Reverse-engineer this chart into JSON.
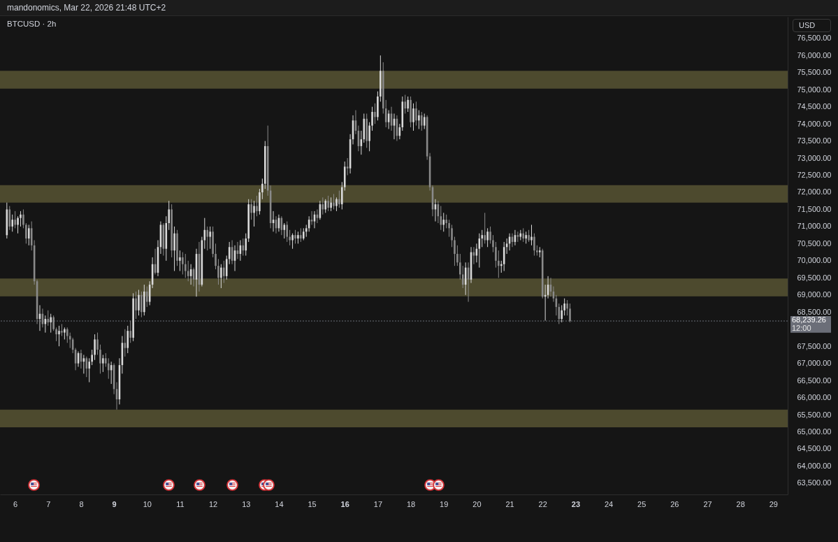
{
  "chart_data": {
    "type": "candlestick",
    "title": "BTCUSD · 2h",
    "annotations": [
      "mandonomics, Mar 22, 2026 21:48 UTC+2",
      "USD",
      "12:00"
    ],
    "x": [
      "2026-03-05T18:00",
      "2026-03-05T20:00",
      "2026-03-05T22:00",
      "2026-03-06T00:00",
      "2026-03-06T02:00",
      "2026-03-06T04:00",
      "2026-03-06T06:00",
      "2026-03-06T08:00",
      "2026-03-06T10:00",
      "2026-03-06T12:00",
      "2026-03-06T14:00",
      "2026-03-06T16:00",
      "2026-03-06T18:00",
      "2026-03-06T20:00",
      "2026-03-06T22:00",
      "2026-03-07T00:00",
      "2026-03-07T02:00",
      "2026-03-07T04:00",
      "2026-03-07T06:00",
      "2026-03-07T08:00",
      "2026-03-07T10:00",
      "2026-03-07T12:00",
      "2026-03-07T14:00",
      "2026-03-07T16:00",
      "2026-03-07T18:00",
      "2026-03-07T20:00",
      "2026-03-07T22:00",
      "2026-03-08T00:00",
      "2026-03-08T02:00",
      "2026-03-08T04:00",
      "2026-03-08T06:00",
      "2026-03-08T08:00",
      "2026-03-08T10:00",
      "2026-03-08T12:00",
      "2026-03-08T14:00",
      "2026-03-08T16:00",
      "2026-03-08T18:00",
      "2026-03-08T20:00",
      "2026-03-08T22:00",
      "2026-03-09T00:00",
      "2026-03-09T02:00",
      "2026-03-09T04:00",
      "2026-03-09T06:00",
      "2026-03-09T08:00",
      "2026-03-09T10:00",
      "2026-03-09T12:00",
      "2026-03-09T14:00",
      "2026-03-09T16:00",
      "2026-03-09T18:00",
      "2026-03-09T20:00",
      "2026-03-09T22:00",
      "2026-03-10T00:00",
      "2026-03-10T02:00",
      "2026-03-10T04:00",
      "2026-03-10T06:00",
      "2026-03-10T08:00",
      "2026-03-10T10:00",
      "2026-03-10T12:00",
      "2026-03-10T14:00",
      "2026-03-10T16:00",
      "2026-03-10T18:00",
      "2026-03-10T20:00",
      "2026-03-10T22:00",
      "2026-03-11T00:00",
      "2026-03-11T02:00",
      "2026-03-11T04:00",
      "2026-03-11T06:00",
      "2026-03-11T08:00",
      "2026-03-11T10:00",
      "2026-03-11T12:00",
      "2026-03-11T14:00",
      "2026-03-11T16:00",
      "2026-03-11T18:00",
      "2026-03-11T20:00",
      "2026-03-11T22:00",
      "2026-03-12T00:00",
      "2026-03-12T02:00",
      "2026-03-12T04:00",
      "2026-03-12T06:00",
      "2026-03-12T08:00",
      "2026-03-12T10:00",
      "2026-03-12T12:00",
      "2026-03-12T14:00",
      "2026-03-12T16:00",
      "2026-03-12T18:00",
      "2026-03-12T20:00",
      "2026-03-12T22:00",
      "2026-03-13T00:00",
      "2026-03-13T02:00",
      "2026-03-13T04:00",
      "2026-03-13T06:00",
      "2026-03-13T08:00",
      "2026-03-13T10:00",
      "2026-03-13T12:00",
      "2026-03-13T14:00",
      "2026-03-13T16:00",
      "2026-03-13T18:00",
      "2026-03-13T20:00",
      "2026-03-13T22:00",
      "2026-03-14T00:00",
      "2026-03-14T02:00",
      "2026-03-14T04:00",
      "2026-03-14T06:00",
      "2026-03-14T08:00",
      "2026-03-14T10:00",
      "2026-03-14T12:00",
      "2026-03-14T14:00",
      "2026-03-14T16:00",
      "2026-03-14T18:00",
      "2026-03-14T20:00",
      "2026-03-14T22:00",
      "2026-03-15T00:00",
      "2026-03-15T02:00",
      "2026-03-15T04:00",
      "2026-03-15T06:00",
      "2026-03-15T08:00",
      "2026-03-15T10:00",
      "2026-03-15T12:00",
      "2026-03-15T14:00",
      "2026-03-15T16:00",
      "2026-03-15T18:00",
      "2026-03-15T20:00",
      "2026-03-15T22:00",
      "2026-03-16T00:00",
      "2026-03-16T02:00",
      "2026-03-16T04:00",
      "2026-03-16T06:00",
      "2026-03-16T08:00",
      "2026-03-16T10:00",
      "2026-03-16T12:00",
      "2026-03-16T14:00",
      "2026-03-16T16:00",
      "2026-03-16T18:00",
      "2026-03-16T20:00",
      "2026-03-16T22:00",
      "2026-03-17T00:00",
      "2026-03-17T02:00",
      "2026-03-17T04:00",
      "2026-03-17T06:00",
      "2026-03-17T08:00",
      "2026-03-17T10:00",
      "2026-03-17T12:00",
      "2026-03-17T14:00",
      "2026-03-17T16:00",
      "2026-03-17T18:00",
      "2026-03-17T20:00",
      "2026-03-17T22:00",
      "2026-03-18T00:00",
      "2026-03-18T02:00",
      "2026-03-18T04:00",
      "2026-03-18T06:00",
      "2026-03-18T08:00",
      "2026-03-18T10:00",
      "2026-03-18T12:00",
      "2026-03-18T14:00",
      "2026-03-18T16:00",
      "2026-03-18T18:00",
      "2026-03-18T20:00",
      "2026-03-18T22:00",
      "2026-03-19T00:00",
      "2026-03-19T02:00",
      "2026-03-19T04:00",
      "2026-03-19T06:00",
      "2026-03-19T08:00",
      "2026-03-19T10:00",
      "2026-03-19T12:00",
      "2026-03-19T14:00",
      "2026-03-19T16:00",
      "2026-03-19T18:00",
      "2026-03-19T20:00",
      "2026-03-19T22:00",
      "2026-03-20T00:00",
      "2026-03-20T02:00",
      "2026-03-20T04:00",
      "2026-03-20T06:00",
      "2026-03-20T08:00",
      "2026-03-20T10:00",
      "2026-03-20T12:00",
      "2026-03-20T14:00",
      "2026-03-20T16:00",
      "2026-03-20T18:00",
      "2026-03-20T20:00",
      "2026-03-20T22:00",
      "2026-03-21T00:00",
      "2026-03-21T02:00",
      "2026-03-21T04:00",
      "2026-03-21T06:00",
      "2026-03-21T08:00",
      "2026-03-21T10:00",
      "2026-03-21T12:00",
      "2026-03-21T14:00",
      "2026-03-21T16:00",
      "2026-03-21T18:00",
      "2026-03-21T20:00",
      "2026-03-21T22:00",
      "2026-03-22T00:00",
      "2026-03-22T02:00",
      "2026-03-22T04:00",
      "2026-03-22T06:00",
      "2026-03-22T08:00",
      "2026-03-22T10:00",
      "2026-03-22T12:00",
      "2026-03-22T14:00",
      "2026-03-22T16:00",
      "2026-03-22T18:00",
      "2026-03-22T20:00"
    ],
    "ohlc": [
      [
        70750,
        71700,
        70650,
        71500
      ],
      [
        71500,
        71600,
        70900,
        71000
      ],
      [
        71000,
        71350,
        70850,
        71200
      ],
      [
        71200,
        71450,
        70950,
        71050
      ],
      [
        71050,
        71300,
        70800,
        71250
      ],
      [
        71250,
        71450,
        71000,
        71350
      ],
      [
        71350,
        71500,
        70950,
        71050
      ],
      [
        71050,
        71100,
        70500,
        70650
      ],
      [
        70650,
        71050,
        70450,
        70950
      ],
      [
        70950,
        71150,
        70300,
        70450
      ],
      [
        70450,
        70600,
        69300,
        69400
      ],
      [
        69400,
        69450,
        68150,
        68300
      ],
      [
        68300,
        68700,
        67950,
        68450
      ],
      [
        68450,
        68600,
        68050,
        68150
      ],
      [
        68150,
        68400,
        67900,
        68300
      ],
      [
        68300,
        68550,
        68100,
        68200
      ],
      [
        68200,
        68450,
        67900,
        68350
      ],
      [
        68350,
        68400,
        67950,
        68000
      ],
      [
        68000,
        68050,
        67650,
        67850
      ],
      [
        67850,
        68100,
        67500,
        67950
      ],
      [
        67950,
        68150,
        67800,
        67900
      ],
      [
        67900,
        68050,
        67700,
        68000
      ],
      [
        68000,
        68050,
        67600,
        67800
      ],
      [
        67800,
        67900,
        67450,
        67700
      ],
      [
        67700,
        67750,
        67300,
        67400
      ],
      [
        67400,
        67450,
        66800,
        67000
      ],
      [
        67000,
        67350,
        66900,
        67300
      ],
      [
        67300,
        67400,
        66850,
        67050
      ],
      [
        67050,
        67250,
        66700,
        67150
      ],
      [
        67150,
        67200,
        66600,
        66850
      ],
      [
        66850,
        67150,
        66450,
        67050
      ],
      [
        67050,
        67400,
        66950,
        67250
      ],
      [
        67250,
        67850,
        67100,
        67700
      ],
      [
        67700,
        67900,
        67250,
        67400
      ],
      [
        67400,
        67550,
        66700,
        67000
      ],
      [
        67000,
        67250,
        66750,
        67150
      ],
      [
        67150,
        67300,
        66900,
        67000
      ],
      [
        67000,
        67150,
        66550,
        66800
      ],
      [
        66800,
        67050,
        66400,
        66950
      ],
      [
        66950,
        67000,
        66100,
        66250
      ],
      [
        66250,
        66450,
        65650,
        65950
      ],
      [
        65950,
        67150,
        65800,
        66950
      ],
      [
        66950,
        67800,
        66700,
        67600
      ],
      [
        67600,
        68000,
        67200,
        67450
      ],
      [
        67450,
        68100,
        67300,
        67950
      ],
      [
        67950,
        68250,
        67600,
        67750
      ],
      [
        67750,
        69050,
        67650,
        68900
      ],
      [
        68900,
        69100,
        68300,
        68550
      ],
      [
        68550,
        69150,
        68400,
        69000
      ],
      [
        69000,
        69100,
        68350,
        68500
      ],
      [
        68500,
        69300,
        68400,
        69100
      ],
      [
        69100,
        69250,
        68650,
        68800
      ],
      [
        68800,
        69400,
        68700,
        69300
      ],
      [
        69300,
        70100,
        69200,
        69900
      ],
      [
        69900,
        70350,
        69600,
        69650
      ],
      [
        69650,
        70600,
        69550,
        70400
      ],
      [
        70400,
        71150,
        70200,
        71050
      ],
      [
        71050,
        71100,
        70150,
        70350
      ],
      [
        70350,
        71300,
        70000,
        71100
      ],
      [
        71100,
        71750,
        70900,
        71500
      ],
      [
        71500,
        71650,
        70100,
        70300
      ],
      [
        70300,
        71000,
        69700,
        70800
      ],
      [
        70800,
        70900,
        69850,
        70000
      ],
      [
        70000,
        70300,
        69700,
        70100
      ],
      [
        70100,
        70250,
        69600,
        69900
      ],
      [
        69900,
        70200,
        69500,
        69700
      ],
      [
        69700,
        70000,
        69400,
        69550
      ],
      [
        69550,
        69900,
        69300,
        69750
      ],
      [
        69750,
        69800,
        69250,
        69450
      ],
      [
        69450,
        70350,
        68950,
        70200
      ],
      [
        70200,
        70550,
        69100,
        69300
      ],
      [
        69300,
        70700,
        69250,
        70600
      ],
      [
        70600,
        71250,
        70350,
        70900
      ],
      [
        70900,
        71000,
        70300,
        70700
      ],
      [
        70700,
        71000,
        70350,
        70850
      ],
      [
        70850,
        71000,
        70100,
        70200
      ],
      [
        70200,
        70500,
        69750,
        69850
      ],
      [
        69850,
        70050,
        69300,
        69500
      ],
      [
        69500,
        69900,
        69200,
        69800
      ],
      [
        69800,
        70000,
        69350,
        69550
      ],
      [
        69550,
        70150,
        69450,
        70050
      ],
      [
        70050,
        70550,
        69900,
        70400
      ],
      [
        70400,
        70600,
        69900,
        70000
      ],
      [
        70000,
        70450,
        69700,
        70300
      ],
      [
        70300,
        70550,
        70050,
        70200
      ],
      [
        70200,
        70600,
        70000,
        70450
      ],
      [
        70450,
        70650,
        70150,
        70300
      ],
      [
        70300,
        70800,
        70150,
        70650
      ],
      [
        70650,
        71800,
        70550,
        71650
      ],
      [
        71650,
        71800,
        71200,
        71400
      ],
      [
        71400,
        71750,
        71000,
        71600
      ],
      [
        71600,
        71900,
        71300,
        71450
      ],
      [
        71450,
        72100,
        71350,
        72000
      ],
      [
        72000,
        72400,
        71800,
        72250
      ],
      [
        72250,
        73500,
        72100,
        73350
      ],
      [
        73350,
        73950,
        71900,
        72050
      ],
      [
        72050,
        72200,
        70950,
        71100
      ],
      [
        71100,
        71450,
        70850,
        71200
      ],
      [
        71200,
        71300,
        70800,
        70950
      ],
      [
        70950,
        71350,
        70850,
        71250
      ],
      [
        71250,
        71300,
        70750,
        70900
      ],
      [
        70900,
        71100,
        70650,
        71050
      ],
      [
        71050,
        71150,
        70550,
        70700
      ],
      [
        70700,
        70900,
        70450,
        70600
      ],
      [
        70600,
        70800,
        70350,
        70750
      ],
      [
        70750,
        70900,
        70500,
        70650
      ],
      [
        70650,
        70850,
        70500,
        70750
      ],
      [
        70750,
        70950,
        70550,
        70650
      ],
      [
        70650,
        70950,
        70600,
        70850
      ],
      [
        70850,
        71050,
        70700,
        70950
      ],
      [
        70950,
        71300,
        70850,
        71200
      ],
      [
        71200,
        71450,
        71050,
        71150
      ],
      [
        71150,
        71450,
        70950,
        71350
      ],
      [
        71350,
        71500,
        71100,
        71250
      ],
      [
        71250,
        71750,
        71200,
        71650
      ],
      [
        71650,
        71850,
        71350,
        71500
      ],
      [
        71500,
        71800,
        71400,
        71750
      ],
      [
        71750,
        71900,
        71450,
        71550
      ],
      [
        71550,
        71850,
        71450,
        71700
      ],
      [
        71700,
        71950,
        71500,
        71600
      ],
      [
        71600,
        71850,
        71450,
        71800
      ],
      [
        71800,
        72050,
        71550,
        71650
      ],
      [
        71650,
        72300,
        71500,
        72150
      ],
      [
        72150,
        72900,
        72050,
        72750
      ],
      [
        72750,
        73000,
        72500,
        72700
      ],
      [
        72700,
        73700,
        72550,
        73550
      ],
      [
        73550,
        74250,
        73400,
        74100
      ],
      [
        74100,
        74400,
        73700,
        73800
      ],
      [
        73800,
        73950,
        73200,
        73350
      ],
      [
        73350,
        73800,
        73100,
        73550
      ],
      [
        73550,
        74300,
        73450,
        74150
      ],
      [
        74150,
        74300,
        73300,
        73500
      ],
      [
        73500,
        74050,
        73200,
        73950
      ],
      [
        73950,
        74500,
        73800,
        74350
      ],
      [
        74350,
        74600,
        74000,
        74200
      ],
      [
        74200,
        74950,
        74100,
        74800
      ],
      [
        74800,
        76000,
        74650,
        75550
      ],
      [
        75550,
        75800,
        74300,
        74450
      ],
      [
        74450,
        74700,
        73900,
        74050
      ],
      [
        74050,
        74400,
        73850,
        74300
      ],
      [
        74300,
        74500,
        73800,
        73950
      ],
      [
        73950,
        74300,
        73550,
        74150
      ],
      [
        74150,
        74250,
        73500,
        73650
      ],
      [
        73650,
        74000,
        73550,
        73900
      ],
      [
        73900,
        74800,
        73800,
        74650
      ],
      [
        74650,
        74850,
        74300,
        74450
      ],
      [
        74450,
        74800,
        74350,
        74700
      ],
      [
        74700,
        74800,
        73900,
        74050
      ],
      [
        74050,
        74600,
        73800,
        74450
      ],
      [
        74450,
        74650,
        73950,
        74100
      ],
      [
        74100,
        74400,
        73850,
        74250
      ],
      [
        74250,
        74350,
        73800,
        73950
      ],
      [
        73950,
        74300,
        73850,
        74200
      ],
      [
        74200,
        74250,
        72950,
        73050
      ],
      [
        73050,
        73150,
        72050,
        72150
      ],
      [
        72150,
        72200,
        71300,
        71500
      ],
      [
        71500,
        71800,
        71150,
        71650
      ],
      [
        71650,
        71750,
        71100,
        71300
      ],
      [
        71300,
        71600,
        70900,
        71050
      ],
      [
        71050,
        71400,
        70850,
        71200
      ],
      [
        71200,
        71350,
        70950,
        71100
      ],
      [
        71100,
        71200,
        70700,
        70950
      ],
      [
        70950,
        71050,
        70400,
        70600
      ],
      [
        70600,
        70700,
        69850,
        70200
      ],
      [
        70200,
        70450,
        69850,
        69950
      ],
      [
        69950,
        70200,
        69450,
        69600
      ],
      [
        69600,
        69850,
        69200,
        69300
      ],
      [
        69300,
        69950,
        69000,
        69800
      ],
      [
        69800,
        69950,
        68800,
        69450
      ],
      [
        69450,
        70400,
        69350,
        70250
      ],
      [
        70250,
        70400,
        69900,
        70150
      ],
      [
        70150,
        70500,
        69950,
        70350
      ],
      [
        70350,
        70800,
        69800,
        70650
      ],
      [
        70650,
        70900,
        70400,
        70750
      ],
      [
        70750,
        71400,
        70500,
        70600
      ],
      [
        70600,
        70950,
        70400,
        70850
      ],
      [
        70850,
        71000,
        70500,
        70600
      ],
      [
        70600,
        70750,
        70250,
        70400
      ],
      [
        70400,
        70550,
        69800,
        70000
      ],
      [
        70000,
        70300,
        69500,
        69850
      ],
      [
        69850,
        70000,
        69650,
        69900
      ],
      [
        69900,
        70550,
        69700,
        70400
      ],
      [
        70400,
        70650,
        70200,
        70500
      ],
      [
        70500,
        70800,
        70300,
        70700
      ],
      [
        70700,
        70800,
        70400,
        70550
      ],
      [
        70550,
        70900,
        70450,
        70750
      ],
      [
        70750,
        70850,
        70550,
        70700
      ],
      [
        70700,
        70900,
        70600,
        70800
      ],
      [
        70800,
        70950,
        70550,
        70650
      ],
      [
        70650,
        70850,
        70500,
        70750
      ],
      [
        70750,
        70900,
        70550,
        70600
      ],
      [
        70600,
        71050,
        70450,
        70700
      ],
      [
        70700,
        70800,
        70150,
        70300
      ],
      [
        70300,
        70450,
        70150,
        70250
      ],
      [
        70250,
        70400,
        70100,
        70300
      ],
      [
        70300,
        70350,
        68900,
        68950
      ],
      [
        68950,
        69300,
        68250,
        69000
      ],
      [
        69000,
        69550,
        68900,
        69300
      ],
      [
        69300,
        69500,
        68950,
        69100
      ],
      [
        69100,
        69250,
        68800,
        68900
      ],
      [
        68900,
        69000,
        68400,
        68650
      ],
      [
        68650,
        68750,
        68150,
        68300
      ],
      [
        68300,
        68700,
        68200,
        68550
      ],
      [
        68550,
        68900,
        68400,
        68750
      ],
      [
        68750,
        68850,
        68400,
        68600
      ],
      [
        68600,
        68750,
        68200,
        68239.26
      ]
    ],
    "colors": [
      "#d9d9d9",
      "#8a8a8a",
      "#d9d9d9",
      "#8a8a8a",
      "#d9d9d9",
      "#d9d9d9",
      "#8a8a8a",
      "#8a8a8a",
      "#d9d9d9",
      "#8a8a8a",
      "#8a8a8a",
      "#8a8a8a",
      "#d9d9d9",
      "#8a8a8a",
      "#d9d9d9",
      "#8a8a8a",
      "#d9d9d9",
      "#8a8a8a",
      "#8a8a8a",
      "#d9d9d9",
      "#8a8a8a",
      "#d9d9d9",
      "#8a8a8a",
      "#8a8a8a",
      "#8a8a8a",
      "#8a8a8a",
      "#d9d9d9",
      "#8a8a8a",
      "#d9d9d9",
      "#8a8a8a",
      "#d9d9d9",
      "#d9d9d9",
      "#d9d9d9",
      "#8a8a8a",
      "#8a8a8a",
      "#d9d9d9",
      "#8a8a8a",
      "#8a8a8a",
      "#d9d9d9",
      "#8a8a8a",
      "#8a8a8a",
      "#d9d9d9",
      "#d9d9d9",
      "#8a8a8a",
      "#d9d9d9",
      "#8a8a8a",
      "#d9d9d9",
      "#8a8a8a",
      "#d9d9d9",
      "#8a8a8a",
      "#d9d9d9",
      "#8a8a8a",
      "#d9d9d9",
      "#d9d9d9",
      "#8a8a8a",
      "#d9d9d9",
      "#d9d9d9",
      "#8a8a8a",
      "#d9d9d9",
      "#d9d9d9",
      "#8a8a8a",
      "#d9d9d9",
      "#8a8a8a",
      "#d9d9d9",
      "#8a8a8a",
      "#8a8a8a",
      "#8a8a8a",
      "#d9d9d9",
      "#8a8a8a",
      "#d9d9d9",
      "#8a8a8a",
      "#d9d9d9",
      "#d9d9d9",
      "#8a8a8a",
      "#d9d9d9",
      "#8a8a8a",
      "#8a8a8a",
      "#8a8a8a",
      "#d9d9d9",
      "#8a8a8a",
      "#d9d9d9",
      "#d9d9d9",
      "#8a8a8a",
      "#d9d9d9",
      "#8a8a8a",
      "#d9d9d9",
      "#8a8a8a",
      "#d9d9d9",
      "#d9d9d9",
      "#8a8a8a",
      "#d9d9d9",
      "#8a8a8a",
      "#d9d9d9",
      "#d9d9d9",
      "#d9d9d9",
      "#8a8a8a",
      "#8a8a8a",
      "#d9d9d9",
      "#8a8a8a",
      "#d9d9d9",
      "#8a8a8a",
      "#d9d9d9",
      "#8a8a8a",
      "#8a8a8a",
      "#d9d9d9",
      "#8a8a8a",
      "#d9d9d9",
      "#8a8a8a",
      "#d9d9d9",
      "#d9d9d9",
      "#d9d9d9",
      "#8a8a8a",
      "#d9d9d9",
      "#8a8a8a",
      "#d9d9d9",
      "#8a8a8a",
      "#d9d9d9",
      "#8a8a8a",
      "#d9d9d9",
      "#8a8a8a",
      "#d9d9d9",
      "#8a8a8a",
      "#d9d9d9",
      "#d9d9d9",
      "#8a8a8a",
      "#d9d9d9",
      "#d9d9d9",
      "#8a8a8a",
      "#8a8a8a",
      "#d9d9d9",
      "#d9d9d9",
      "#8a8a8a",
      "#d9d9d9",
      "#d9d9d9",
      "#8a8a8a",
      "#d9d9d9",
      "#d9d9d9",
      "#8a8a8a",
      "#8a8a8a",
      "#d9d9d9",
      "#8a8a8a",
      "#d9d9d9",
      "#8a8a8a",
      "#d9d9d9",
      "#d9d9d9",
      "#8a8a8a",
      "#d9d9d9",
      "#8a8a8a",
      "#d9d9d9",
      "#8a8a8a",
      "#d9d9d9",
      "#8a8a8a",
      "#d9d9d9",
      "#8a8a8a",
      "#8a8a8a",
      "#8a8a8a",
      "#d9d9d9",
      "#8a8a8a",
      "#8a8a8a",
      "#d9d9d9",
      "#8a8a8a",
      "#8a8a8a",
      "#8a8a8a",
      "#8a8a8a",
      "#8a8a8a",
      "#8a8a8a",
      "#8a8a8a",
      "#d9d9d9",
      "#8a8a8a",
      "#d9d9d9",
      "#8a8a8a",
      "#d9d9d9",
      "#d9d9d9",
      "#d9d9d9",
      "#8a8a8a",
      "#d9d9d9",
      "#8a8a8a",
      "#8a8a8a",
      "#8a8a8a",
      "#8a8a8a",
      "#d9d9d9",
      "#d9d9d9",
      "#d9d9d9",
      "#d9d9d9",
      "#8a8a8a",
      "#d9d9d9",
      "#8a8a8a",
      "#d9d9d9",
      "#8a8a8a",
      "#d9d9d9",
      "#8a8a8a",
      "#d9d9d9",
      "#8a8a8a",
      "#8a8a8a",
      "#d9d9d9",
      "#8a8a8a",
      "#d9d9d9",
      "#d9d9d9",
      "#8a8a8a",
      "#8a8a8a",
      "#8a8a8a",
      "#8a8a8a",
      "#d9d9d9",
      "#d9d9d9",
      "#8a8a8a",
      "#8a8a8a"
    ],
    "xlim": [
      "2026-03-05T13:00",
      "2026-03-29T10:30"
    ],
    "xticks": [
      {
        "value": "2026-03-06T00:00",
        "label": "6"
      },
      {
        "value": "2026-03-07T00:00",
        "label": "7"
      },
      {
        "value": "2026-03-08T00:00",
        "label": "8"
      },
      {
        "value": "2026-03-09T00:00",
        "label": "9"
      },
      {
        "value": "2026-03-10T00:00",
        "label": "10"
      },
      {
        "value": "2026-03-11T00:00",
        "label": "11"
      },
      {
        "value": "2026-03-12T00:00",
        "label": "12"
      },
      {
        "value": "2026-03-13T00:00",
        "label": "13"
      },
      {
        "value": "2026-03-14T00:00",
        "label": "14"
      },
      {
        "value": "2026-03-15T00:00",
        "label": "15"
      },
      {
        "value": "2026-03-16T00:00",
        "label": "16"
      },
      {
        "value": "2026-03-17T00:00",
        "label": "17"
      },
      {
        "value": "2026-03-18T00:00",
        "label": "18"
      },
      {
        "value": "2026-03-19T00:00",
        "label": "19"
      },
      {
        "value": "2026-03-20T00:00",
        "label": "20"
      },
      {
        "value": "2026-03-21T00:00",
        "label": "21"
      },
      {
        "value": "2026-03-22T00:00",
        "label": "22"
      },
      {
        "value": "2026-03-23T00:00",
        "label": "23"
      },
      {
        "value": "2026-03-24T00:00",
        "label": "24"
      },
      {
        "value": "2026-03-25T00:00",
        "label": "25"
      },
      {
        "value": "2026-03-26T00:00",
        "label": "26"
      },
      {
        "value": "2026-03-27T00:00",
        "label": "27"
      },
      {
        "value": "2026-03-28T00:00",
        "label": "28"
      },
      {
        "value": "2026-03-29T00:00",
        "label": "29"
      }
    ],
    "ylim": [
      63170,
      77130
    ],
    "yticks": [
      {
        "value": 63500,
        "label": "63,500.00"
      },
      {
        "value": 64000,
        "label": "64,000.00"
      },
      {
        "value": 64500,
        "label": "64,500.00"
      },
      {
        "value": 65000,
        "label": "65,000.00"
      },
      {
        "value": 65500,
        "label": "65,500.00"
      },
      {
        "value": 66000,
        "label": "66,000.00"
      },
      {
        "value": 66500,
        "label": "66,500.00"
      },
      {
        "value": 67000,
        "label": "67,000.00"
      },
      {
        "value": 67500,
        "label": "67,500.00"
      },
      {
        "value": 68500,
        "label": "68,500.00"
      },
      {
        "value": 69000,
        "label": "69,000.00"
      },
      {
        "value": 69500,
        "label": "69,500.00"
      },
      {
        "value": 70000,
        "label": "70,000.00"
      },
      {
        "value": 70500,
        "label": "70,500.00"
      },
      {
        "value": 71000,
        "label": "71,000.00"
      },
      {
        "value": 71500,
        "label": "71,500.00"
      },
      {
        "value": 72000,
        "label": "72,000.00"
      },
      {
        "value": 72500,
        "label": "72,500.00"
      },
      {
        "value": 73000,
        "label": "73,000.00"
      },
      {
        "value": 73500,
        "label": "73,500.00"
      },
      {
        "value": 74000,
        "label": "74,000.00"
      },
      {
        "value": 74500,
        "label": "74,500.00"
      },
      {
        "value": 75000,
        "label": "75,000.00"
      },
      {
        "value": 75500,
        "label": "75,500.00"
      },
      {
        "value": 76000,
        "label": "76,000.00"
      },
      {
        "value": 76500,
        "label": "76,500.00"
      }
    ],
    "bands": [
      {
        "axis": "y",
        "from": 75030,
        "to": 75550,
        "color": "#4d4a2e"
      },
      {
        "axis": "y",
        "from": 71700,
        "to": 72210,
        "color": "#4d4a2e"
      },
      {
        "axis": "y",
        "from": 68960,
        "to": 69480,
        "color": "#4d4a2e"
      },
      {
        "axis": "y",
        "from": 65130,
        "to": 65650,
        "color": "#4d4a2e"
      }
    ],
    "ref_lines": [
      {
        "axis": "y",
        "value": 68239.26,
        "label": "68,239.26",
        "color": "#6b6e78",
        "line_style": "dotted"
      }
    ]
  }
}
